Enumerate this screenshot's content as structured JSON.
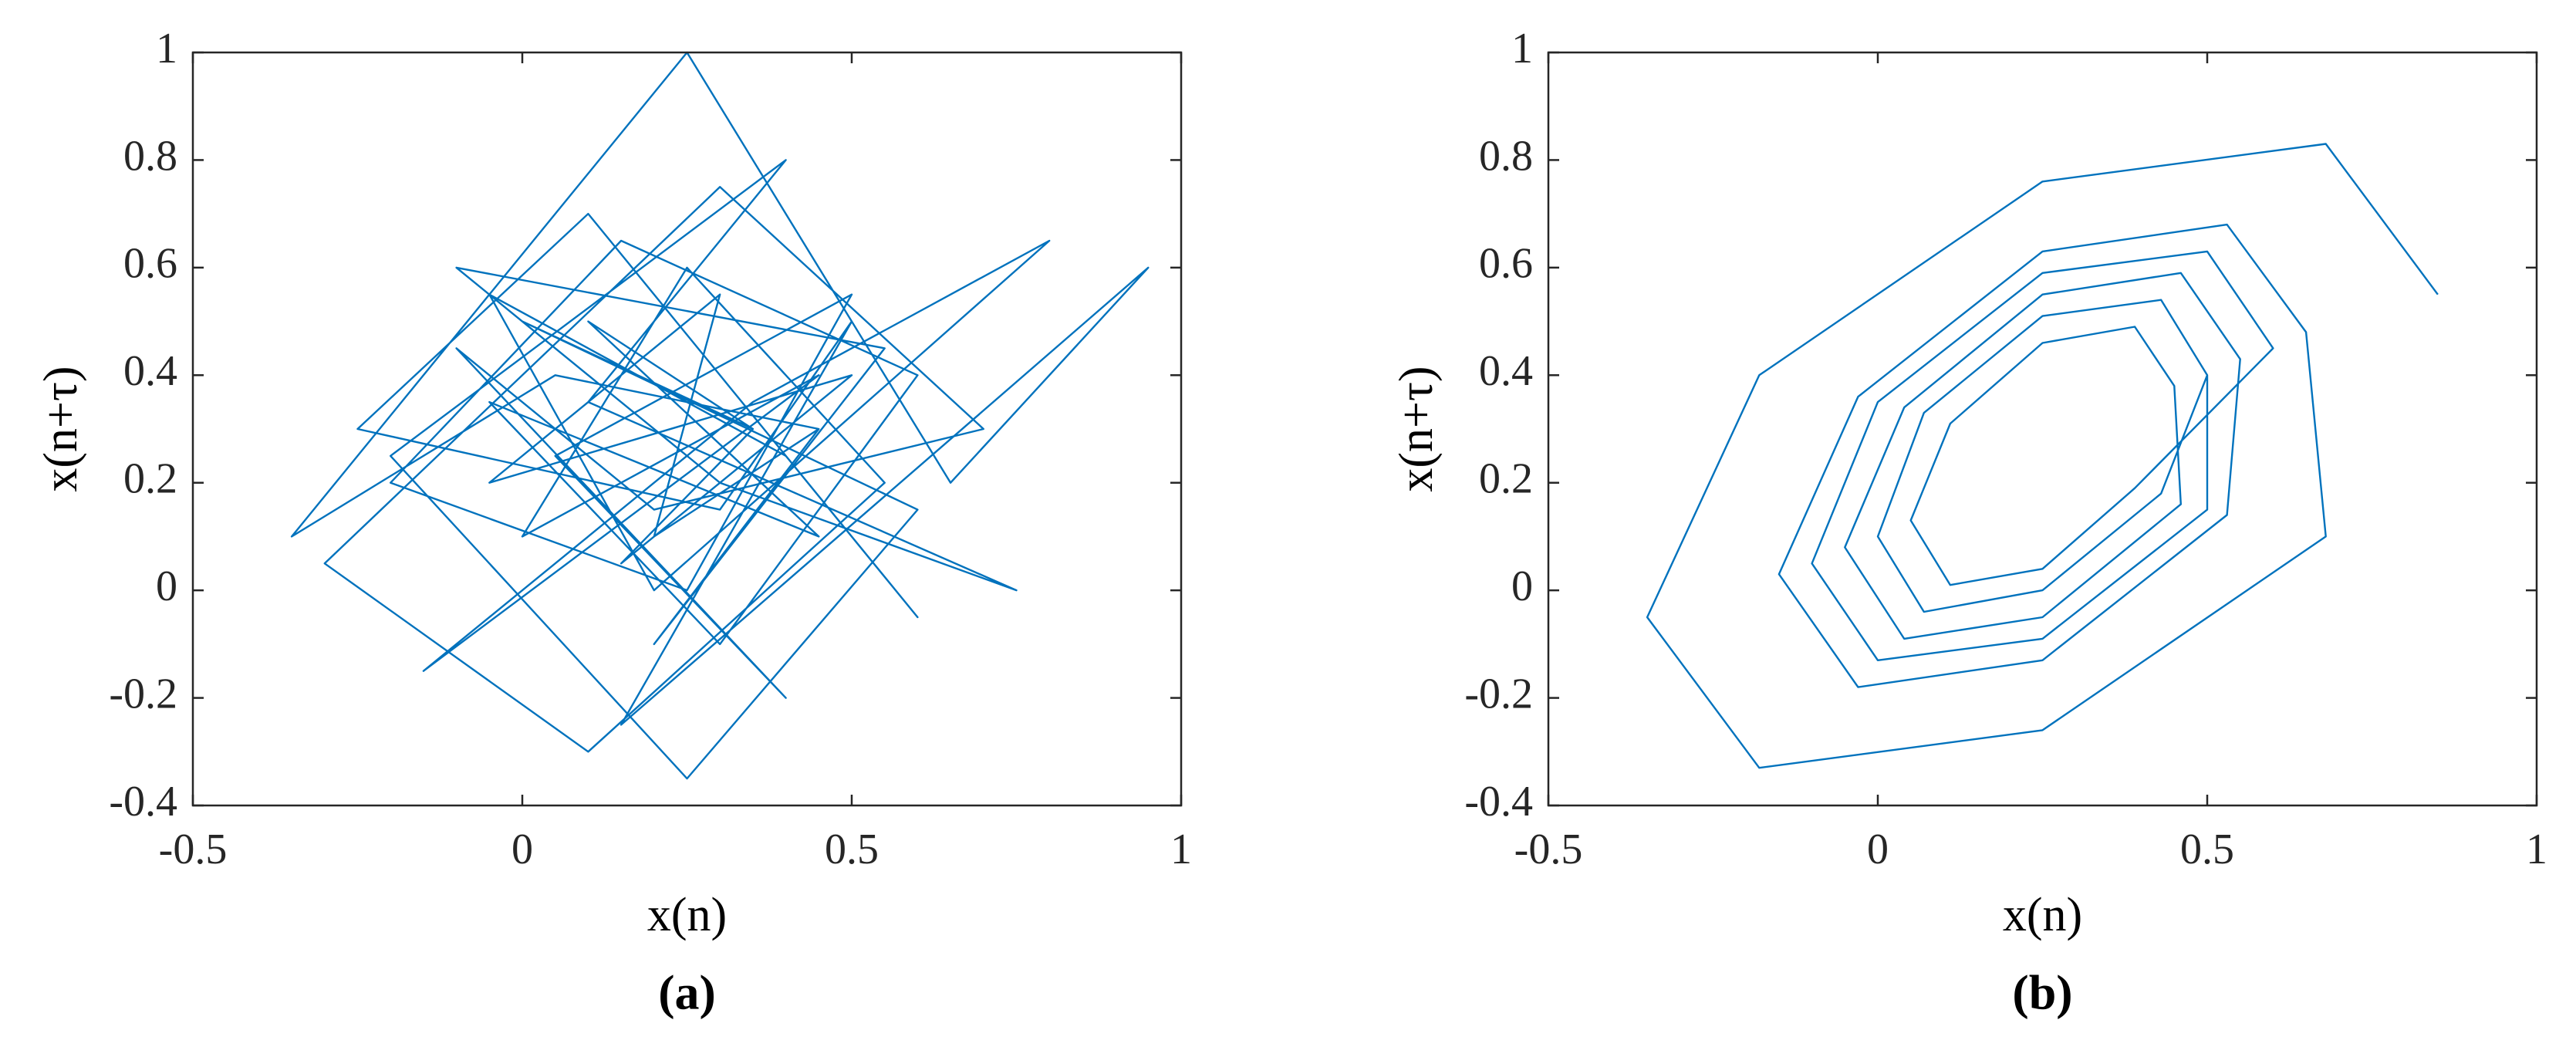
{
  "chart_data": [
    {
      "type": "line",
      "label": "(a)",
      "xlabel": "x(n)",
      "ylabel": "x(n+τ)",
      "color": "#0072bd",
      "xlim": [
        -0.5,
        1
      ],
      "ylim": [
        -0.4,
        1
      ],
      "xticks": [
        -0.5,
        0,
        0.5,
        1
      ],
      "yticks": [
        -0.4,
        -0.2,
        0,
        0.2,
        0.4,
        0.6,
        0.8,
        1
      ],
      "x": [
        0.35,
        0.1,
        0.45,
        -0.05,
        0.3,
        0.6,
        0.15,
        -0.2,
        0.25,
        0.5,
        0.05,
        0.4,
        -0.1,
        0.2,
        0.7,
        0.3,
        -0.3,
        0.1,
        0.55,
        0.25,
        0.0,
        0.45,
        -0.15,
        0.35,
        0.8,
        0.2,
        -0.05,
        0.4,
        0.6,
        0.1,
        -0.25,
        0.3,
        0.5,
        0.15,
        0.95,
        0.65,
        0.25,
        -0.35,
        0.05,
        0.45,
        0.2,
        0.55,
        -0.1,
        0.3,
        0.75,
        0.1,
        0.4,
        -0.2,
        0.25,
        0.6,
        0.0,
        0.35,
        0.15,
        0.5,
        -0.05,
        0.3,
        0.2,
        0.45
      ],
      "values": [
        0.3,
        0.5,
        0.1,
        0.35,
        -0.1,
        0.4,
        0.65,
        0.2,
        0.0,
        0.55,
        0.25,
        -0.2,
        0.45,
        0.15,
        0.3,
        0.75,
        0.05,
        -0.3,
        0.2,
        0.6,
        0.1,
        0.4,
        -0.15,
        0.35,
        0.65,
        0.0,
        0.55,
        0.25,
        -0.05,
        0.7,
        0.3,
        0.15,
        0.5,
        -0.25,
        0.6,
        0.2,
        1.0,
        0.1,
        0.4,
        0.3,
        -0.1,
        0.45,
        0.6,
        0.2,
        0.0,
        0.35,
        0.8,
        0.25,
        -0.35,
        0.15,
        0.5,
        0.3,
        0.05,
        0.4,
        0.2,
        0.55,
        0.1,
        0.3
      ]
    },
    {
      "type": "line",
      "label": "(b)",
      "xlabel": "x(n)",
      "ylabel": "x(n+τ)",
      "color": "#0072bd",
      "xlim": [
        -0.5,
        1
      ],
      "ylim": [
        -0.4,
        1
      ],
      "xticks": [
        -0.5,
        0,
        0.5,
        1
      ],
      "yticks": [
        -0.4,
        -0.2,
        0,
        0.2,
        0.4,
        0.6,
        0.8,
        1
      ],
      "x": [
        0.85,
        0.68,
        0.25,
        -0.18,
        -0.35,
        -0.18,
        0.25,
        0.68,
        0.65,
        0.53,
        0.25,
        -0.03,
        -0.15,
        -0.03,
        0.25,
        0.53,
        0.55,
        0.46,
        0.25,
        0.04,
        -0.05,
        0.04,
        0.25,
        0.46,
        0.45,
        0.39,
        0.25,
        0.11,
        0.05,
        0.11,
        0.25,
        0.39,
        0.6,
        0.5,
        0.25,
        0.0,
        -0.1,
        0.0,
        0.25,
        0.5,
        0.5,
        0.43,
        0.25,
        0.07,
        0.0,
        0.07,
        0.25,
        0.43,
        0.5
      ],
      "values": [
        0.55,
        0.83,
        0.76,
        0.4,
        -0.05,
        -0.33,
        -0.26,
        0.1,
        0.48,
        0.68,
        0.63,
        0.36,
        0.03,
        -0.18,
        -0.13,
        0.14,
        0.43,
        0.59,
        0.55,
        0.34,
        0.08,
        -0.09,
        -0.05,
        0.16,
        0.38,
        0.49,
        0.46,
        0.31,
        0.13,
        0.01,
        0.04,
        0.19,
        0.45,
        0.63,
        0.59,
        0.35,
        0.05,
        -0.13,
        -0.09,
        0.15,
        0.4,
        0.54,
        0.51,
        0.33,
        0.1,
        -0.04,
        0.0,
        0.18,
        0.4
      ]
    }
  ]
}
